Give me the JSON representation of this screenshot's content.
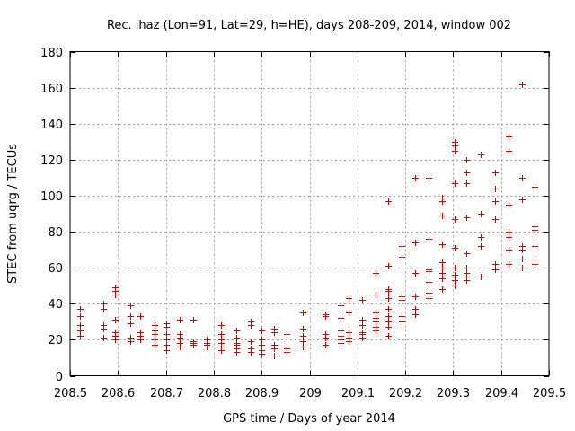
{
  "chart_data": {
    "type": "scatter",
    "title": "Rec. lhaz (Lon=91, Lat=29, h=HE), days 208-209, 2014, window 002",
    "xlabel": "GPS time / Days of year 2014",
    "ylabel": "STEC from uqrg / TECUs",
    "xlim": [
      208.5,
      209.5
    ],
    "ylim": [
      0,
      180
    ],
    "xticks": [
      208.5,
      208.6,
      208.7,
      208.8,
      208.9,
      209.0,
      209.1,
      209.2,
      209.3,
      209.4,
      209.5
    ],
    "xtick_labels": [
      "208.5",
      "208.6",
      "208.7",
      "208.8",
      "208.9",
      "209",
      "209.1",
      "209.2",
      "209.3",
      "209.4",
      "209.5"
    ],
    "yticks": [
      0,
      20,
      40,
      60,
      80,
      100,
      120,
      140,
      160,
      180
    ],
    "ytick_labels": [
      "0",
      "20",
      "40",
      "60",
      "80",
      "100",
      "120",
      "140",
      "160",
      "180"
    ],
    "grid": true,
    "marker": "+",
    "color": "#cc0000",
    "points": [
      [
        208.521,
        37
      ],
      [
        208.521,
        33
      ],
      [
        208.521,
        28
      ],
      [
        208.521,
        25
      ],
      [
        208.521,
        22
      ],
      [
        208.569,
        40
      ],
      [
        208.569,
        37
      ],
      [
        208.569,
        28
      ],
      [
        208.569,
        26
      ],
      [
        208.569,
        21
      ],
      [
        208.594,
        49
      ],
      [
        208.594,
        47
      ],
      [
        208.594,
        45
      ],
      [
        208.594,
        31
      ],
      [
        208.594,
        24
      ],
      [
        208.594,
        22
      ],
      [
        208.594,
        20
      ],
      [
        208.625,
        39
      ],
      [
        208.625,
        33
      ],
      [
        208.625,
        29
      ],
      [
        208.625,
        21
      ],
      [
        208.625,
        19
      ],
      [
        208.646,
        33
      ],
      [
        208.646,
        24
      ],
      [
        208.646,
        22
      ],
      [
        208.646,
        20
      ],
      [
        208.677,
        28
      ],
      [
        208.677,
        25
      ],
      [
        208.677,
        23
      ],
      [
        208.677,
        20
      ],
      [
        208.677,
        17
      ],
      [
        208.701,
        29
      ],
      [
        208.701,
        27
      ],
      [
        208.701,
        23
      ],
      [
        208.701,
        20
      ],
      [
        208.701,
        17
      ],
      [
        208.701,
        14
      ],
      [
        208.729,
        31
      ],
      [
        208.729,
        23
      ],
      [
        208.729,
        21
      ],
      [
        208.729,
        18
      ],
      [
        208.729,
        16
      ],
      [
        208.757,
        31
      ],
      [
        208.757,
        19
      ],
      [
        208.757,
        18
      ],
      [
        208.757,
        17
      ],
      [
        208.785,
        20
      ],
      [
        208.785,
        18
      ],
      [
        208.785,
        17
      ],
      [
        208.785,
        16
      ],
      [
        208.815,
        28
      ],
      [
        208.815,
        23
      ],
      [
        208.815,
        20
      ],
      [
        208.815,
        18
      ],
      [
        208.815,
        16
      ],
      [
        208.815,
        14
      ],
      [
        208.847,
        25
      ],
      [
        208.847,
        21
      ],
      [
        208.847,
        18
      ],
      [
        208.847,
        17
      ],
      [
        208.847,
        15
      ],
      [
        208.847,
        13
      ],
      [
        208.878,
        30
      ],
      [
        208.878,
        28
      ],
      [
        208.878,
        19
      ],
      [
        208.878,
        15
      ],
      [
        208.878,
        13
      ],
      [
        208.9,
        25
      ],
      [
        208.9,
        20
      ],
      [
        208.9,
        17
      ],
      [
        208.9,
        14
      ],
      [
        208.9,
        12
      ],
      [
        208.925,
        26
      ],
      [
        208.925,
        24
      ],
      [
        208.925,
        17
      ],
      [
        208.925,
        15
      ],
      [
        208.925,
        11
      ],
      [
        208.952,
        23
      ],
      [
        208.952,
        16
      ],
      [
        208.952,
        15
      ],
      [
        208.952,
        13
      ],
      [
        208.985,
        35
      ],
      [
        208.985,
        26
      ],
      [
        208.985,
        22
      ],
      [
        208.985,
        19
      ],
      [
        208.985,
        16
      ],
      [
        209.033,
        34
      ],
      [
        209.033,
        33
      ],
      [
        209.033,
        23
      ],
      [
        209.033,
        21
      ],
      [
        209.033,
        17
      ],
      [
        209.065,
        39
      ],
      [
        209.065,
        32
      ],
      [
        209.065,
        25
      ],
      [
        209.065,
        22
      ],
      [
        209.065,
        20
      ],
      [
        209.065,
        18
      ],
      [
        209.082,
        43
      ],
      [
        209.082,
        35
      ],
      [
        209.082,
        24
      ],
      [
        209.082,
        21
      ],
      [
        209.082,
        19
      ],
      [
        209.11,
        42
      ],
      [
        209.11,
        31
      ],
      [
        209.11,
        28
      ],
      [
        209.11,
        24
      ],
      [
        209.11,
        23
      ],
      [
        209.11,
        21
      ],
      [
        209.137,
        57
      ],
      [
        209.137,
        45
      ],
      [
        209.137,
        35
      ],
      [
        209.137,
        32
      ],
      [
        209.137,
        30
      ],
      [
        209.137,
        27
      ],
      [
        209.137,
        25
      ],
      [
        209.165,
        97
      ],
      [
        209.165,
        61
      ],
      [
        209.165,
        48
      ],
      [
        209.165,
        47
      ],
      [
        209.165,
        43
      ],
      [
        209.165,
        37
      ],
      [
        209.165,
        33
      ],
      [
        209.165,
        30
      ],
      [
        209.165,
        27
      ],
      [
        209.165,
        22
      ],
      [
        209.193,
        72
      ],
      [
        209.193,
        66
      ],
      [
        209.193,
        44
      ],
      [
        209.193,
        42
      ],
      [
        209.193,
        33
      ],
      [
        209.193,
        30
      ],
      [
        209.22,
        110
      ],
      [
        209.22,
        74
      ],
      [
        209.22,
        57
      ],
      [
        209.22,
        44
      ],
      [
        209.22,
        37
      ],
      [
        209.22,
        34
      ],
      [
        209.248,
        110
      ],
      [
        209.248,
        76
      ],
      [
        209.248,
        59
      ],
      [
        209.248,
        58
      ],
      [
        209.248,
        52
      ],
      [
        209.248,
        46
      ],
      [
        209.248,
        43
      ],
      [
        209.277,
        99
      ],
      [
        209.277,
        97
      ],
      [
        209.277,
        89
      ],
      [
        209.277,
        73
      ],
      [
        209.277,
        63
      ],
      [
        209.277,
        60
      ],
      [
        209.277,
        57
      ],
      [
        209.277,
        54
      ],
      [
        209.277,
        48
      ],
      [
        209.303,
        130
      ],
      [
        209.303,
        128
      ],
      [
        209.303,
        125
      ],
      [
        209.303,
        107
      ],
      [
        209.303,
        87
      ],
      [
        209.303,
        71
      ],
      [
        209.303,
        60
      ],
      [
        209.303,
        56
      ],
      [
        209.303,
        53
      ],
      [
        209.303,
        50
      ],
      [
        209.328,
        120
      ],
      [
        209.328,
        113
      ],
      [
        209.328,
        107
      ],
      [
        209.328,
        88
      ],
      [
        209.328,
        68
      ],
      [
        209.328,
        60
      ],
      [
        209.328,
        57
      ],
      [
        209.328,
        55
      ],
      [
        209.328,
        53
      ],
      [
        209.358,
        123
      ],
      [
        209.358,
        90
      ],
      [
        209.358,
        77
      ],
      [
        209.358,
        72
      ],
      [
        209.358,
        55
      ],
      [
        209.388,
        113
      ],
      [
        209.388,
        104
      ],
      [
        209.388,
        97
      ],
      [
        209.388,
        87
      ],
      [
        209.388,
        62
      ],
      [
        209.388,
        59
      ],
      [
        209.415,
        133
      ],
      [
        209.415,
        125
      ],
      [
        209.415,
        95
      ],
      [
        209.415,
        80
      ],
      [
        209.415,
        77
      ],
      [
        209.415,
        70
      ],
      [
        209.415,
        62
      ],
      [
        209.443,
        162
      ],
      [
        209.443,
        110
      ],
      [
        209.443,
        98
      ],
      [
        209.443,
        72
      ],
      [
        209.443,
        70
      ],
      [
        209.443,
        65
      ],
      [
        209.443,
        60
      ],
      [
        209.47,
        105
      ],
      [
        209.47,
        83
      ],
      [
        209.47,
        81
      ],
      [
        209.47,
        72
      ],
      [
        209.47,
        65
      ],
      [
        209.47,
        62
      ]
    ]
  }
}
